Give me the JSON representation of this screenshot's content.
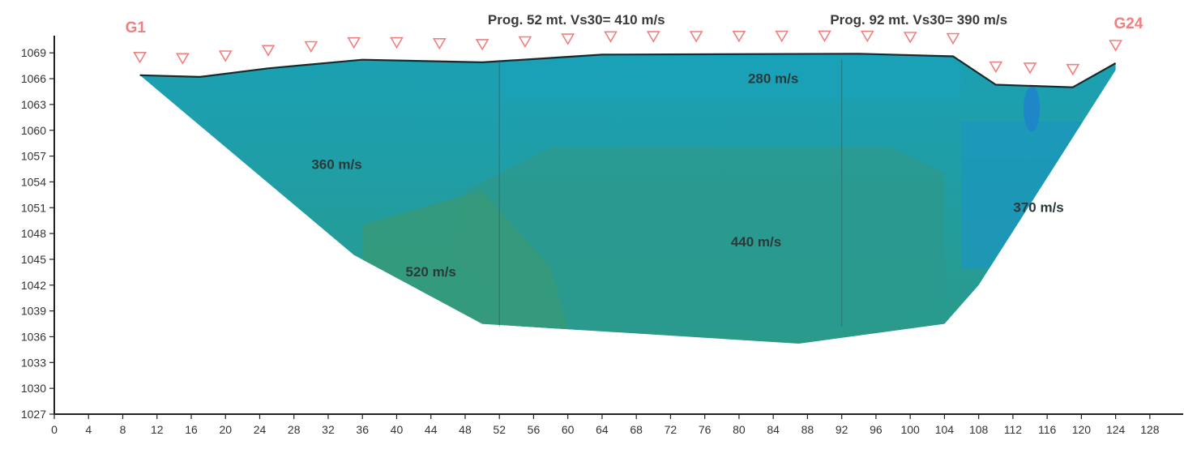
{
  "chart_data": {
    "type": "area",
    "title": "",
    "xlabel": "",
    "ylabel": "",
    "xlim": [
      0,
      130
    ],
    "ylim": [
      1027,
      1071
    ],
    "x_ticks": [
      "0",
      "4",
      "8",
      "12",
      "16",
      "20",
      "24",
      "28",
      "32",
      "36",
      "40",
      "44",
      "48",
      "52",
      "56",
      "60",
      "64",
      "68",
      "72",
      "76",
      "80",
      "84",
      "88",
      "92",
      "96",
      "100",
      "104",
      "108",
      "112",
      "116",
      "120",
      "124",
      "128"
    ],
    "y_ticks": [
      "1027",
      "1030",
      "1033",
      "1036",
      "1039",
      "1042",
      "1045",
      "1048",
      "1051",
      "1054",
      "1057",
      "1060",
      "1063",
      "1066",
      "1069"
    ],
    "surface_profile": [
      {
        "x": 10,
        "y": 1066.4
      },
      {
        "x": 17,
        "y": 1066.2
      },
      {
        "x": 25,
        "y": 1067.2
      },
      {
        "x": 36,
        "y": 1068.2
      },
      {
        "x": 50,
        "y": 1067.9
      },
      {
        "x": 64,
        "y": 1068.8
      },
      {
        "x": 94,
        "y": 1068.9
      },
      {
        "x": 105,
        "y": 1068.6
      },
      {
        "x": 110,
        "y": 1065.3
      },
      {
        "x": 119,
        "y": 1065.0
      },
      {
        "x": 124,
        "y": 1067.8
      }
    ],
    "bottom_profile": [
      {
        "x": 124,
        "y": 1067.0
      },
      {
        "x": 108,
        "y": 1042.0
      },
      {
        "x": 104,
        "y": 1037.5
      },
      {
        "x": 87,
        "y": 1035.2
      },
      {
        "x": 50,
        "y": 1037.5
      },
      {
        "x": 35,
        "y": 1045.5
      },
      {
        "x": 10,
        "y": 1066.4
      }
    ],
    "layers": [
      {
        "label": "280 m/s",
        "x": 84,
        "y": 1065.5,
        "color": "#1aa0b4"
      },
      {
        "label": "360 m/s",
        "x": 33,
        "y": 1055.5,
        "color": "#1c9ea8"
      },
      {
        "label": "370 m/s",
        "x": 115,
        "y": 1050.5,
        "color": "#1a98b8"
      },
      {
        "label": "440 m/s",
        "x": 82,
        "y": 1046.5,
        "color": "#2a9c94"
      },
      {
        "label": "520 m/s",
        "x": 44,
        "y": 1043,
        "color": "#3a9c78"
      }
    ],
    "geophones": {
      "x": [
        10,
        15,
        20,
        25,
        30,
        35,
        40,
        45,
        50,
        55,
        60,
        65,
        70,
        75,
        80,
        85,
        90,
        95,
        100,
        105,
        110,
        114,
        119,
        124
      ],
      "first_label": "G1",
      "last_label": "G24",
      "first_label_x": 9.5,
      "last_label_x": 125.5,
      "color": "#f08080"
    },
    "vs30_lines": [
      {
        "x": 52,
        "label": "Prog. 52 mt. Vs30= 410 m/s",
        "label_x": 61
      },
      {
        "x": 92,
        "label": "Prog. 92 mt. Vs30= 390 m/s",
        "label_x": 101
      }
    ],
    "grid": false
  }
}
